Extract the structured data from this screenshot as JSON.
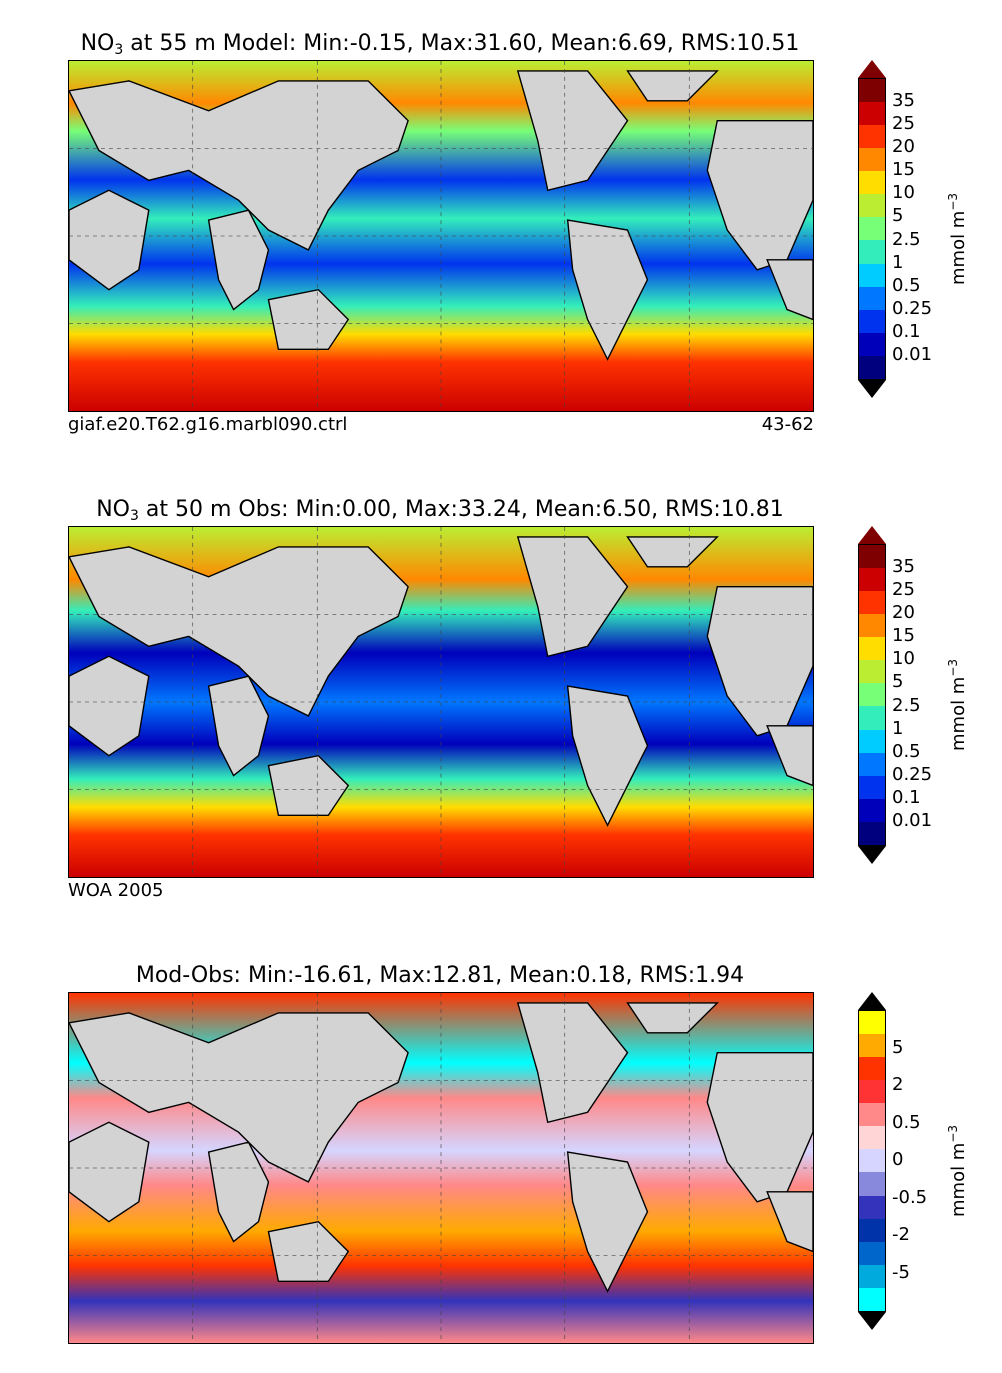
{
  "panels": [
    {
      "title_prefix": "NO",
      "title_sub": "3",
      "title_rest": " at 55 m Model: Min:-0.15, Max:31.60, Mean:6.69, RMS:10.51",
      "footer_left": "giaf.e20.T62.g16.marbl090.ctrl",
      "footer_right": "43-62",
      "colorbar": {
        "ticks": [
          "35",
          "25",
          "20",
          "15",
          "10",
          "5",
          "2.5",
          "1",
          "0.5",
          "0.25",
          "0.1",
          "0.01"
        ],
        "colors": [
          "#7f0000",
          "#cc0000",
          "#ff3300",
          "#ff8800",
          "#ffdd00",
          "#bbee33",
          "#77ff77",
          "#33eebb",
          "#00ccff",
          "#0077ff",
          "#0033ee",
          "#0000bb",
          "#00007f"
        ],
        "unit": "mmol m",
        "unit_sup": "−3"
      }
    },
    {
      "title_prefix": "NO",
      "title_sub": "3",
      "title_rest": " at 50 m Obs: Min:0.00, Max:33.24, Mean:6.50, RMS:10.81",
      "footer_left": "WOA 2005",
      "footer_right": "",
      "colorbar": {
        "ticks": [
          "35",
          "25",
          "20",
          "15",
          "10",
          "5",
          "2.5",
          "1",
          "0.5",
          "0.25",
          "0.1",
          "0.01"
        ],
        "colors": [
          "#7f0000",
          "#cc0000",
          "#ff3300",
          "#ff8800",
          "#ffdd00",
          "#bbee33",
          "#77ff77",
          "#33eebb",
          "#00ccff",
          "#0077ff",
          "#0033ee",
          "#0000bb",
          "#00007f"
        ],
        "unit": "mmol m",
        "unit_sup": "−3"
      }
    },
    {
      "title_prefix": "",
      "title_sub": "",
      "title_rest": "Mod-Obs: Min:-16.61, Max:12.81, Mean:0.18, RMS:1.94",
      "footer_left": "",
      "footer_right": "",
      "colorbar": {
        "ticks": [
          "5",
          "2",
          "0.5",
          "0",
          "-0.5",
          "-2",
          "-5"
        ],
        "colors": [
          "#ffff00",
          "#ffaa00",
          "#ff3300",
          "#ff3333",
          "#ff8888",
          "#ffd5d5",
          "#d5d5ff",
          "#8888dd",
          "#3333bb",
          "#0033aa",
          "#0066cc",
          "#00aadd",
          "#00ffff"
        ],
        "unit": "mmol m",
        "unit_sup": "−3"
      }
    }
  ]
}
